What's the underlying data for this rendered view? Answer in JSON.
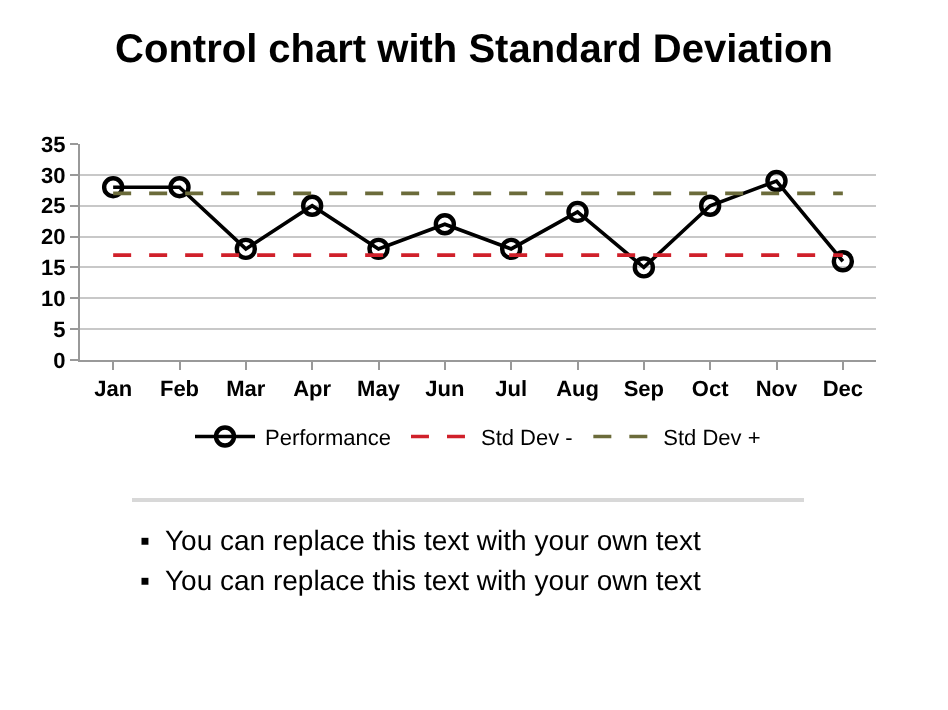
{
  "chart_data": {
    "type": "line",
    "title": "Control chart with Standard Deviation",
    "categories": [
      "Jan",
      "Feb",
      "Mar",
      "Apr",
      "May",
      "Jun",
      "Jul",
      "Aug",
      "Sep",
      "Oct",
      "Nov",
      "Dec"
    ],
    "series": [
      {
        "name": "Performance",
        "color": "#000000",
        "marker": "circle",
        "line_style": "solid",
        "values": [
          28,
          28,
          18,
          25,
          18,
          22,
          18,
          24,
          15,
          25,
          29,
          16
        ]
      },
      {
        "name": "Std Dev -",
        "color": "#d0202a",
        "marker": "none",
        "line_style": "dashed",
        "values": [
          17,
          17,
          17,
          17,
          17,
          17,
          17,
          17,
          17,
          17,
          17,
          17
        ]
      },
      {
        "name": "Std Dev +",
        "color": "#6b6b3a",
        "marker": "none",
        "line_style": "dashed",
        "values": [
          27,
          27,
          27,
          27,
          27,
          27,
          27,
          27,
          27,
          27,
          27,
          27
        ]
      }
    ],
    "ylim": [
      0,
      35
    ],
    "yticks": [
      0,
      5,
      10,
      15,
      20,
      25,
      30,
      35
    ],
    "grid": "y",
    "legend": "bottom",
    "annotations": [
      "▪  You can replace this text with your own text",
      "▪  You can replace this text with your own text"
    ]
  }
}
